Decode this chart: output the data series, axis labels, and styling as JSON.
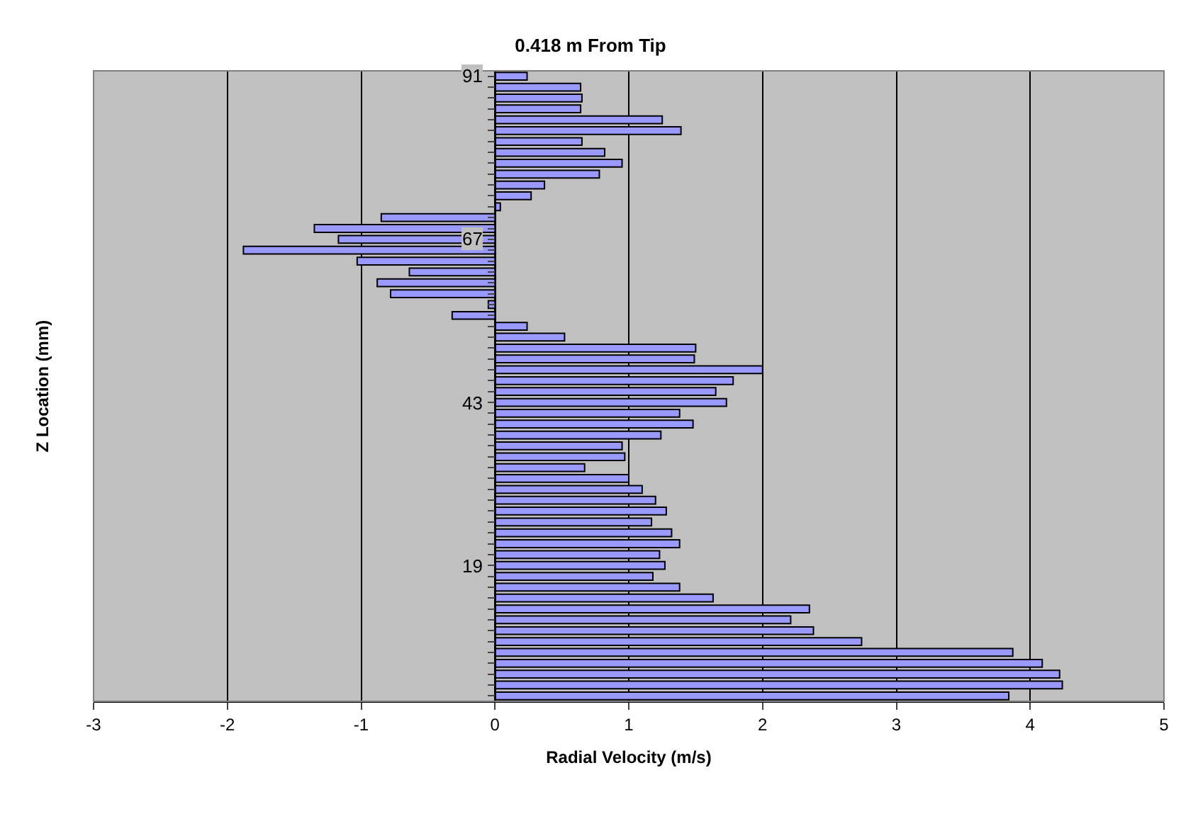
{
  "chart_data": {
    "type": "bar",
    "orientation": "horizontal",
    "title": "0.418 m From Tip",
    "xlabel": "Radial Velocity (m/s)",
    "ylabel": "Z Location (mm)",
    "categories": [
      "91",
      null,
      null,
      null,
      null,
      null,
      null,
      null,
      null,
      null,
      null,
      null,
      null,
      null,
      null,
      "67",
      null,
      null,
      null,
      null,
      null,
      null,
      null,
      null,
      null,
      null,
      null,
      null,
      null,
      null,
      "43",
      null,
      null,
      null,
      null,
      null,
      null,
      null,
      null,
      null,
      null,
      null,
      null,
      null,
      null,
      "19",
      null,
      null,
      null,
      null,
      null,
      null,
      null,
      null,
      null,
      null,
      null,
      null
    ],
    "values": [
      0.24,
      0.64,
      0.65,
      0.64,
      1.25,
      1.39,
      0.65,
      0.82,
      0.95,
      0.78,
      0.37,
      0.27,
      0.04,
      -0.85,
      -1.35,
      -1.17,
      -1.88,
      -1.03,
      -0.64,
      -0.88,
      -0.78,
      -0.05,
      -0.32,
      0.24,
      0.52,
      1.5,
      1.49,
      2.0,
      1.78,
      1.65,
      1.73,
      1.38,
      1.48,
      1.24,
      0.95,
      0.97,
      0.67,
      1.0,
      1.1,
      1.2,
      1.28,
      1.17,
      1.32,
      1.38,
      1.23,
      1.27,
      1.18,
      1.38,
      1.63,
      2.35,
      2.21,
      2.38,
      2.74,
      3.87,
      4.09,
      4.22,
      4.24,
      3.84
    ],
    "color": "#9999ff",
    "xlim": [
      -3,
      5
    ],
    "xticks": [
      -3,
      -2,
      -1,
      0,
      1,
      2,
      3,
      4,
      5
    ],
    "grid": "x",
    "legend": false
  }
}
